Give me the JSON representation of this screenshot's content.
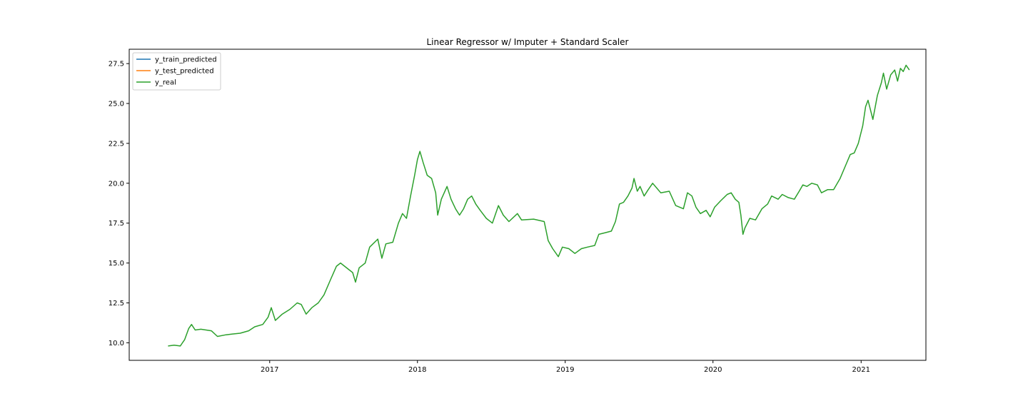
{
  "chart_data": {
    "type": "line",
    "title": "Linear Regressor w/ Imputer + Standard Scaler",
    "xlabel": "",
    "ylabel": "",
    "x_axis": {
      "kind": "date",
      "range": [
        "2016-01-20",
        "2021-06-10"
      ],
      "ticks": [
        "2017-01-01",
        "2018-01-01",
        "2019-01-01",
        "2020-01-01",
        "2021-01-01"
      ],
      "tick_labels": [
        "2017",
        "2018",
        "2019",
        "2020",
        "2021"
      ]
    },
    "y_axis": {
      "range": [
        8.9,
        28.4
      ],
      "ticks": [
        10.0,
        12.5,
        15.0,
        17.5,
        20.0,
        22.5,
        25.0,
        27.5
      ],
      "tick_labels": [
        "10.0",
        "12.5",
        "15.0",
        "17.5",
        "20.0",
        "22.5",
        "25.0",
        "27.5"
      ]
    },
    "grid": false,
    "legend_position": "top-left",
    "series": [
      {
        "name": "y_train_predicted",
        "color": "#1f77b4",
        "points": []
      },
      {
        "name": "y_test_predicted",
        "color": "#ff7f0e",
        "points": []
      },
      {
        "name": "y_real",
        "color": "#2ca02c",
        "points": [
          [
            "2016-04-25",
            9.8
          ],
          [
            "2016-05-10",
            9.85
          ],
          [
            "2016-05-25",
            9.8
          ],
          [
            "2016-06-05",
            10.2
          ],
          [
            "2016-06-15",
            10.9
          ],
          [
            "2016-06-22",
            11.15
          ],
          [
            "2016-07-01",
            10.8
          ],
          [
            "2016-07-15",
            10.85
          ],
          [
            "2016-08-10",
            10.75
          ],
          [
            "2016-08-25",
            10.4
          ],
          [
            "2016-09-15",
            10.5
          ],
          [
            "2016-10-01",
            10.55
          ],
          [
            "2016-10-20",
            10.6
          ],
          [
            "2016-11-10",
            10.75
          ],
          [
            "2016-11-25",
            11.0
          ],
          [
            "2016-12-15",
            11.15
          ],
          [
            "2016-12-28",
            11.6
          ],
          [
            "2017-01-05",
            12.2
          ],
          [
            "2017-01-15",
            11.4
          ],
          [
            "2017-02-01",
            11.8
          ],
          [
            "2017-02-20",
            12.1
          ],
          [
            "2017-03-10",
            12.5
          ],
          [
            "2017-03-20",
            12.4
          ],
          [
            "2017-04-01",
            11.8
          ],
          [
            "2017-04-15",
            12.2
          ],
          [
            "2017-05-01",
            12.5
          ],
          [
            "2017-05-15",
            13.0
          ],
          [
            "2017-06-01",
            14.0
          ],
          [
            "2017-06-15",
            14.8
          ],
          [
            "2017-06-25",
            15.0
          ],
          [
            "2017-07-15",
            14.6
          ],
          [
            "2017-07-25",
            14.4
          ],
          [
            "2017-08-01",
            13.8
          ],
          [
            "2017-08-10",
            14.7
          ],
          [
            "2017-08-25",
            15.0
          ],
          [
            "2017-09-05",
            16.0
          ],
          [
            "2017-09-25",
            16.5
          ],
          [
            "2017-10-05",
            15.3
          ],
          [
            "2017-10-15",
            16.2
          ],
          [
            "2017-11-01",
            16.3
          ],
          [
            "2017-11-15",
            17.5
          ],
          [
            "2017-11-25",
            18.1
          ],
          [
            "2017-12-05",
            17.8
          ],
          [
            "2017-12-15",
            19.2
          ],
          [
            "2017-12-25",
            20.5
          ],
          [
            "2018-01-01",
            21.5
          ],
          [
            "2018-01-07",
            22.0
          ],
          [
            "2018-01-15",
            21.3
          ],
          [
            "2018-01-25",
            20.5
          ],
          [
            "2018-02-05",
            20.3
          ],
          [
            "2018-02-15",
            19.4
          ],
          [
            "2018-02-20",
            18.0
          ],
          [
            "2018-03-01",
            19.0
          ],
          [
            "2018-03-15",
            19.8
          ],
          [
            "2018-03-25",
            19.0
          ],
          [
            "2018-04-05",
            18.4
          ],
          [
            "2018-04-15",
            18.0
          ],
          [
            "2018-04-25",
            18.4
          ],
          [
            "2018-05-05",
            19.0
          ],
          [
            "2018-05-15",
            19.2
          ],
          [
            "2018-05-25",
            18.7
          ],
          [
            "2018-06-05",
            18.3
          ],
          [
            "2018-06-20",
            17.8
          ],
          [
            "2018-07-05",
            17.5
          ],
          [
            "2018-07-20",
            18.6
          ],
          [
            "2018-08-01",
            18.0
          ],
          [
            "2018-08-15",
            17.6
          ],
          [
            "2018-09-05",
            18.1
          ],
          [
            "2018-09-15",
            17.7
          ],
          [
            "2018-10-15",
            17.75
          ],
          [
            "2018-11-10",
            17.6
          ],
          [
            "2018-11-20",
            16.4
          ],
          [
            "2018-12-01",
            15.9
          ],
          [
            "2018-12-15",
            15.4
          ],
          [
            "2018-12-25",
            16.0
          ],
          [
            "2019-01-10",
            15.9
          ],
          [
            "2019-01-25",
            15.6
          ],
          [
            "2019-02-10",
            15.9
          ],
          [
            "2019-02-25",
            16.0
          ],
          [
            "2019-03-15",
            16.1
          ],
          [
            "2019-03-25",
            16.8
          ],
          [
            "2019-04-10",
            16.9
          ],
          [
            "2019-04-25",
            17.0
          ],
          [
            "2019-05-05",
            17.6
          ],
          [
            "2019-05-15",
            18.7
          ],
          [
            "2019-05-25",
            18.8
          ],
          [
            "2019-06-05",
            19.2
          ],
          [
            "2019-06-15",
            19.7
          ],
          [
            "2019-06-20",
            20.3
          ],
          [
            "2019-06-28",
            19.5
          ],
          [
            "2019-07-05",
            19.8
          ],
          [
            "2019-07-15",
            19.2
          ],
          [
            "2019-07-25",
            19.6
          ],
          [
            "2019-08-05",
            20.0
          ],
          [
            "2019-08-15",
            19.7
          ],
          [
            "2019-08-25",
            19.4
          ],
          [
            "2019-09-15",
            19.5
          ],
          [
            "2019-10-01",
            18.6
          ],
          [
            "2019-10-20",
            18.4
          ],
          [
            "2019-10-30",
            19.4
          ],
          [
            "2019-11-10",
            19.2
          ],
          [
            "2019-11-20",
            18.5
          ],
          [
            "2019-12-01",
            18.1
          ],
          [
            "2019-12-15",
            18.3
          ],
          [
            "2019-12-25",
            17.9
          ],
          [
            "2020-01-05",
            18.5
          ],
          [
            "2020-01-20",
            18.9
          ],
          [
            "2020-02-05",
            19.3
          ],
          [
            "2020-02-15",
            19.4
          ],
          [
            "2020-02-25",
            19.0
          ],
          [
            "2020-03-05",
            18.8
          ],
          [
            "2020-03-10",
            18.0
          ],
          [
            "2020-03-15",
            16.8
          ],
          [
            "2020-03-20",
            17.2
          ],
          [
            "2020-04-01",
            17.8
          ],
          [
            "2020-04-15",
            17.7
          ],
          [
            "2020-05-01",
            18.4
          ],
          [
            "2020-05-15",
            18.7
          ],
          [
            "2020-05-25",
            19.2
          ],
          [
            "2020-06-10",
            19.0
          ],
          [
            "2020-06-20",
            19.3
          ],
          [
            "2020-07-05",
            19.1
          ],
          [
            "2020-07-20",
            19.0
          ],
          [
            "2020-08-01",
            19.5
          ],
          [
            "2020-08-10",
            19.9
          ],
          [
            "2020-08-20",
            19.8
          ],
          [
            "2020-09-01",
            20.0
          ],
          [
            "2020-09-15",
            19.9
          ],
          [
            "2020-09-25",
            19.4
          ],
          [
            "2020-10-10",
            19.6
          ],
          [
            "2020-10-25",
            19.6
          ],
          [
            "2020-11-10",
            20.3
          ],
          [
            "2020-11-25",
            21.2
          ],
          [
            "2020-12-05",
            21.8
          ],
          [
            "2020-12-15",
            21.9
          ],
          [
            "2020-12-25",
            22.5
          ],
          [
            "2021-01-05",
            23.6
          ],
          [
            "2021-01-12",
            24.8
          ],
          [
            "2021-01-18",
            25.2
          ],
          [
            "2021-01-25",
            24.5
          ],
          [
            "2021-01-30",
            24.0
          ],
          [
            "2021-02-10",
            25.5
          ],
          [
            "2021-02-20",
            26.3
          ],
          [
            "2021-02-25",
            26.9
          ],
          [
            "2021-03-05",
            25.9
          ],
          [
            "2021-03-15",
            26.8
          ],
          [
            "2021-03-25",
            27.1
          ],
          [
            "2021-04-01",
            26.4
          ],
          [
            "2021-04-08",
            27.2
          ],
          [
            "2021-04-15",
            27.0
          ],
          [
            "2021-04-22",
            27.4
          ],
          [
            "2021-04-30",
            27.1
          ]
        ]
      }
    ]
  }
}
